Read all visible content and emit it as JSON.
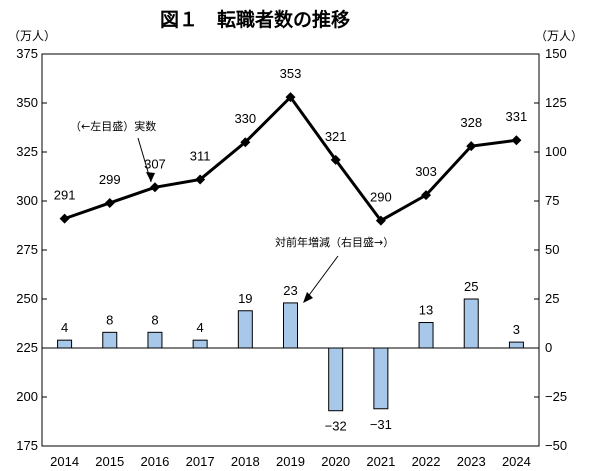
{
  "chart_data": {
    "type": "bar+line",
    "title": "図１　転職者数の推移",
    "x": [
      "2014",
      "2015",
      "2016",
      "2017",
      "2018",
      "2019",
      "2020",
      "2021",
      "2022",
      "2023",
      "2024"
    ],
    "line_series": {
      "name": "実数",
      "axis": "left",
      "values": [
        291,
        299,
        307,
        311,
        330,
        353,
        321,
        290,
        303,
        328,
        331
      ]
    },
    "bar_series": {
      "name": "対前年増減",
      "axis": "right",
      "values": [
        4,
        8,
        8,
        4,
        19,
        23,
        -32,
        -31,
        13,
        25,
        3
      ]
    },
    "left_axis": {
      "unit": "（万人）",
      "ylim": [
        175,
        375
      ],
      "ticks": [
        "175",
        "200",
        "225",
        "250",
        "275",
        "300",
        "325",
        "350",
        "375"
      ]
    },
    "right_axis": {
      "unit": "（万人）",
      "ylim": [
        -50,
        150
      ],
      "ticks": [
        "-50",
        "-25",
        "0",
        "25",
        "50",
        "75",
        "100",
        "125",
        "150"
      ]
    },
    "annotations": {
      "line_note": "（←左目盛）実数",
      "bar_note": "対前年増減（右目盛→）"
    },
    "colors": {
      "bar_fill": "#a8c8ea",
      "bar_stroke": "#000000",
      "line": "#000000"
    }
  }
}
